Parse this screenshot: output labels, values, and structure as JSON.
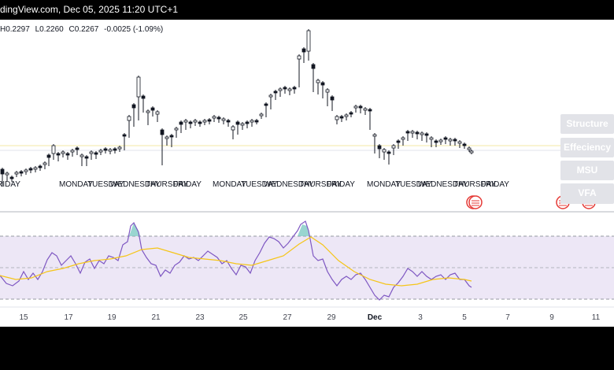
{
  "header": {
    "title_fragment": "dingView.com, Dec 05, 2025 11:20 UTC+1"
  },
  "ohlc": {
    "high": "H0.2297",
    "low": "L0.2260",
    "close": "C0.2267",
    "change": "-0.0025 (-1.09%)"
  },
  "side_buttons": [
    "Structure",
    "Effeciency",
    "MSU",
    "VFA"
  ],
  "day_labels": {
    "first": "FRIDAY",
    "week": [
      "MONDAY",
      "TUESDAY",
      "WEDNESDAY",
      "THURSDAY",
      "FRIDAY"
    ]
  },
  "x_axis_labels": [
    "15",
    "17",
    "19",
    "21",
    "23",
    "25",
    "27",
    "29",
    "Dec",
    "3",
    "5",
    "7",
    "9",
    "11"
  ],
  "colors": {
    "candle": "#131722",
    "rsi_line": "#7e57c2",
    "rsi_ma": "#f5c518",
    "rsi_band": "#ede7f6",
    "overbought_fill": "#80cbc4",
    "side_button_bg": "#e2e3e8",
    "event_icon": "#e53935"
  },
  "icons": {
    "event": "us-flag-event-icon"
  }
}
